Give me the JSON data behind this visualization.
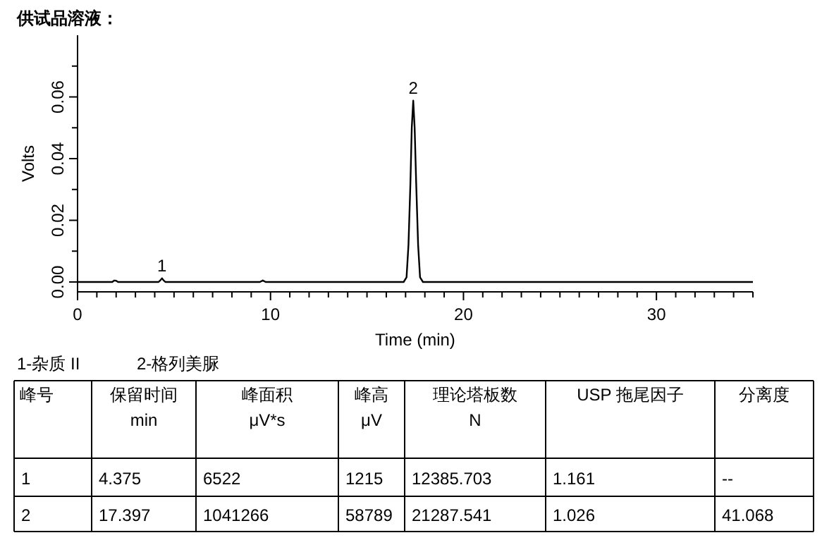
{
  "chart_data": {
    "type": "line",
    "title": "供试品溶液：",
    "xlabel": "Time (min)",
    "ylabel": "Volts",
    "x": [
      0,
      1.8,
      1.9,
      2.0,
      2.1,
      4.2,
      4.3,
      4.375,
      4.45,
      4.55,
      9.45,
      9.6,
      9.75,
      16.9,
      17.05,
      17.15,
      17.25,
      17.32,
      17.397,
      17.47,
      17.55,
      17.65,
      17.75,
      17.9,
      35
    ],
    "series": [
      {
        "color": "#000000",
        "values": [
          0,
          0,
          0.0005,
          0.0004,
          0,
          0,
          0.0006,
          0.0012,
          0.0006,
          0,
          0,
          0.0005,
          0,
          0,
          0.0015,
          0.012,
          0.032,
          0.05,
          0.0588,
          0.05,
          0.032,
          0.012,
          0.0015,
          0,
          0
        ]
      }
    ],
    "xlim": [
      0,
      35
    ],
    "ylim": [
      -0.0032,
      0.08
    ],
    "xticks": [
      0,
      {
        "value": 1,
        "label": null
      },
      {
        "value": 2,
        "label": null
      },
      {
        "value": 3,
        "label": null
      },
      {
        "value": 4,
        "label": null
      },
      {
        "value": 5,
        "label": null
      },
      {
        "value": 6,
        "label": null
      },
      {
        "value": 7,
        "label": null
      },
      {
        "value": 8,
        "label": null
      },
      {
        "value": 9,
        "label": null
      },
      10,
      {
        "value": 11,
        "label": null
      },
      {
        "value": 12,
        "label": null
      },
      {
        "value": 13,
        "label": null
      },
      {
        "value": 14,
        "label": null
      },
      {
        "value": 15,
        "label": null
      },
      {
        "value": 16,
        "label": null
      },
      {
        "value": 17,
        "label": null
      },
      {
        "value": 18,
        "label": null
      },
      {
        "value": 19,
        "label": null
      },
      20,
      {
        "value": 21,
        "label": null
      },
      {
        "value": 22,
        "label": null
      },
      {
        "value": 23,
        "label": null
      },
      {
        "value": 24,
        "label": null
      },
      {
        "value": 25,
        "label": null
      },
      {
        "value": 26,
        "label": null
      },
      {
        "value": 27,
        "label": null
      },
      {
        "value": 28,
        "label": null
      },
      {
        "value": 29,
        "label": null
      },
      30,
      {
        "value": 31,
        "label": null
      },
      {
        "value": 32,
        "label": null
      },
      {
        "value": 33,
        "label": null
      },
      {
        "value": 34,
        "label": null
      },
      {
        "value": 35,
        "label": null
      }
    ],
    "yticks": [
      {
        "value": 0,
        "label": "0.00"
      },
      {
        "value": 0.01,
        "label": null
      },
      {
        "value": 0.02,
        "label": "0.02"
      },
      {
        "value": 0.03,
        "label": null
      },
      {
        "value": 0.04,
        "label": "0.04"
      },
      {
        "value": 0.05,
        "label": null
      },
      {
        "value": 0.06,
        "label": "0.06"
      },
      {
        "value": 0.07,
        "label": null
      }
    ],
    "grid": false,
    "marker": "none",
    "line_style": "solid",
    "annotations": [
      {
        "text": "1",
        "x": 4.375,
        "y": 0.0012
      },
      {
        "text": "2",
        "x": 17.397,
        "y": 0.0588
      },
      "1-杂质 II",
      "2-格列美脲",
      "峰号",
      "保留时间\nmin",
      "峰面积\nμV*s",
      "峰高\nμV",
      "理论塔板数\nN",
      "USP 拖尾因子",
      "分离度",
      "1",
      "4.375",
      "6522",
      "1215",
      "12385.703",
      "1.161",
      "--",
      "2",
      "17.397",
      "1041266",
      "58789",
      "21287.541",
      "1.026",
      "41.068"
    ]
  }
}
